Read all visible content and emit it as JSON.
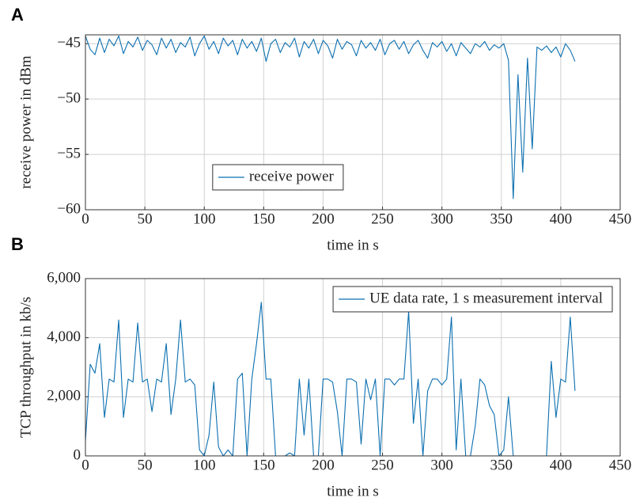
{
  "chart_data": [
    {
      "type": "line",
      "panel_label": "A",
      "xlabel": "time in s",
      "ylabel": "receive power in dBm",
      "xlim": [
        0,
        450
      ],
      "ylim": [
        -60,
        -44.2
      ],
      "grid": true,
      "legend": "lower center",
      "xticks": [
        0,
        50,
        100,
        150,
        200,
        250,
        300,
        350,
        400,
        450
      ],
      "yticks": [
        {
          "value": -45,
          "label": "−45"
        },
        {
          "value": -50,
          "label": "−50"
        },
        {
          "value": -55,
          "label": "−55"
        },
        {
          "value": -60,
          "label": "−60"
        }
      ],
      "x": [
        0,
        4,
        8,
        12,
        16,
        20,
        24,
        28,
        32,
        36,
        40,
        44,
        48,
        52,
        56,
        60,
        64,
        68,
        72,
        76,
        80,
        84,
        88,
        92,
        96,
        100,
        104,
        108,
        112,
        116,
        120,
        124,
        128,
        132,
        136,
        140,
        144,
        148,
        152,
        156,
        160,
        164,
        168,
        172,
        176,
        180,
        184,
        188,
        192,
        196,
        200,
        204,
        208,
        212,
        216,
        220,
        224,
        228,
        232,
        236,
        240,
        244,
        248,
        252,
        256,
        260,
        264,
        268,
        272,
        276,
        280,
        284,
        288,
        292,
        296,
        300,
        304,
        308,
        312,
        316,
        320,
        324,
        328,
        332,
        336,
        340,
        344,
        348,
        352,
        356,
        360,
        364,
        368,
        372,
        376,
        380,
        384,
        388,
        392,
        396,
        400,
        404,
        408,
        412
      ],
      "series": [
        {
          "name": "receive power",
          "color": "#0b6fb0",
          "values": [
            -44.3,
            -45.5,
            -46,
            -44.5,
            -45.8,
            -44.6,
            -45.2,
            -44.3,
            -45.9,
            -44.8,
            -45.3,
            -44.4,
            -45.6,
            -44.7,
            -45.1,
            -46,
            -44.5,
            -45.4,
            -44.6,
            -45.8,
            -44.9,
            -45.3,
            -44.4,
            -46.1,
            -45,
            -44.3,
            -45.5,
            -44.8,
            -45.9,
            -44.5,
            -45.2,
            -44.7,
            -46,
            -44.6,
            -45.4,
            -44.8,
            -45.7,
            -44.5,
            -46.6,
            -45,
            -44.6,
            -45.8,
            -44.9,
            -45.3,
            -44.5,
            -46.2,
            -44.8,
            -45.4,
            -44.6,
            -45.9,
            -44.7,
            -45.2,
            -46.3,
            -44.6,
            -45.5,
            -44.8,
            -45.1,
            -46.1,
            -44.7,
            -45.4,
            -44.9,
            -45.6,
            -44.6,
            -46,
            -45,
            -44.7,
            -45.5,
            -44.8,
            -45.9,
            -45.1,
            -44.7,
            -45.6,
            -46.3,
            -44.9,
            -45.3,
            -44.8,
            -45.7,
            -45,
            -46.1,
            -44.9,
            -45.4,
            -45.9,
            -45,
            -45.3,
            -44.8,
            -45.6,
            -45.1,
            -45.4,
            -45,
            -46.5,
            -59,
            -47.8,
            -56.6,
            -46.3,
            -54.5,
            -45.3,
            -45.6,
            -45.2,
            -45.8,
            -45.3,
            -46.2,
            -45,
            -45.6,
            -46.6
          ]
        }
      ]
    },
    {
      "type": "line",
      "panel_label": "B",
      "xlabel": "time in s",
      "ylabel": "TCP throughput in kb/s",
      "xlim": [
        0,
        450
      ],
      "ylim": [
        0,
        6000
      ],
      "grid": true,
      "legend": "upper right",
      "xticks": [
        0,
        50,
        100,
        150,
        200,
        250,
        300,
        350,
        400,
        450
      ],
      "yticks": [
        0,
        {
          "value": 2000,
          "label": "2,000"
        },
        {
          "value": 4000,
          "label": "4,000"
        },
        {
          "value": 6000,
          "label": "6,000"
        }
      ],
      "x": [
        0,
        4,
        8,
        12,
        16,
        20,
        24,
        28,
        32,
        36,
        40,
        44,
        48,
        52,
        56,
        60,
        64,
        68,
        72,
        76,
        80,
        84,
        88,
        92,
        96,
        100,
        104,
        108,
        112,
        116,
        120,
        124,
        128,
        132,
        136,
        140,
        144,
        148,
        152,
        156,
        160,
        164,
        168,
        172,
        176,
        180,
        184,
        188,
        192,
        196,
        200,
        204,
        208,
        212,
        216,
        220,
        224,
        228,
        232,
        236,
        240,
        244,
        248,
        252,
        256,
        260,
        264,
        268,
        272,
        276,
        280,
        284,
        288,
        292,
        296,
        300,
        304,
        308,
        312,
        316,
        320,
        324,
        328,
        332,
        336,
        340,
        344,
        348,
        352,
        356,
        360,
        364,
        368,
        372,
        376,
        380,
        384,
        388,
        392,
        396,
        400,
        404,
        408,
        412
      ],
      "series": [
        {
          "name": "UE data rate, 1 s measurement interval",
          "color": "#0b6fb0",
          "values": [
            500,
            3100,
            2800,
            3800,
            1300,
            2600,
            2500,
            4600,
            1300,
            2600,
            2500,
            4500,
            2500,
            2600,
            1500,
            2600,
            2500,
            3800,
            1400,
            2600,
            4600,
            2500,
            2600,
            2400,
            200,
            0,
            700,
            2500,
            300,
            0,
            200,
            0,
            2600,
            2800,
            0,
            2600,
            3800,
            5200,
            2600,
            2600,
            0,
            0,
            0,
            100,
            0,
            2600,
            700,
            2600,
            0,
            0,
            2600,
            2600,
            2500,
            1500,
            0,
            2600,
            2600,
            2500,
            400,
            2600,
            1900,
            2600,
            0,
            2600,
            2600,
            2400,
            2600,
            2600,
            4900,
            1100,
            2600,
            0,
            2200,
            2600,
            2600,
            2400,
            2600,
            4700,
            200,
            2600,
            0,
            0,
            1000,
            2600,
            2400,
            1700,
            1400,
            0,
            200,
            2000,
            0,
            0,
            0,
            0,
            0,
            0,
            0,
            0,
            3200,
            1300,
            2600,
            2500,
            4700,
            2200
          ]
        }
      ]
    }
  ]
}
